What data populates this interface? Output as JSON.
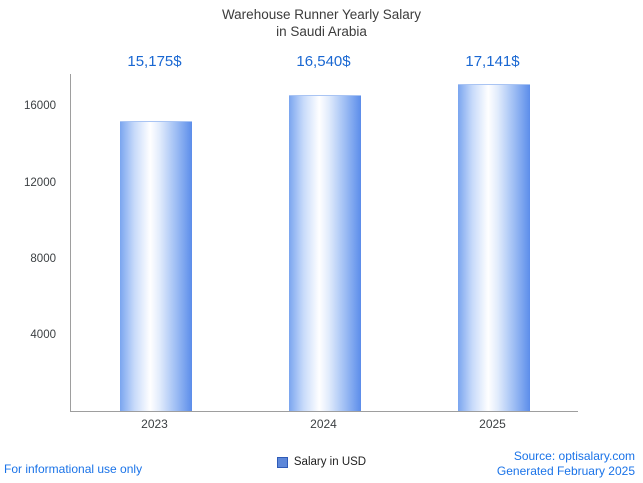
{
  "title": {
    "line1": "Warehouse Runner Yearly Salary",
    "line2": "in Saudi Arabia"
  },
  "chart_data": {
    "type": "bar",
    "title": "Warehouse Runner Yearly Salary in Saudi Arabia",
    "categories": [
      "2023",
      "2024",
      "2025"
    ],
    "values": [
      15175,
      16540,
      17141
    ],
    "value_labels": [
      "15,175$",
      "16,540$",
      "17,141$"
    ],
    "series_name": "Salary in USD",
    "xlabel": "",
    "ylabel": "",
    "ylim": [
      0,
      17700
    ],
    "yticks": [
      4000,
      8000,
      12000,
      16000
    ],
    "grid": false,
    "legend_position": "bottom"
  },
  "legend": {
    "label": "Salary in USD"
  },
  "footer": {
    "disclaimer": "For informational use only",
    "source": "Source: optisalary.com",
    "generated": "Generated February 2025"
  },
  "colors": {
    "accent_blue": "#1967d2",
    "footer_blue": "#1a73e8",
    "bar_edge": "#5c8dea",
    "bar_center": "#ffffff",
    "axis_gray": "#9e9e9e",
    "legend_square": "#5d87d9"
  }
}
